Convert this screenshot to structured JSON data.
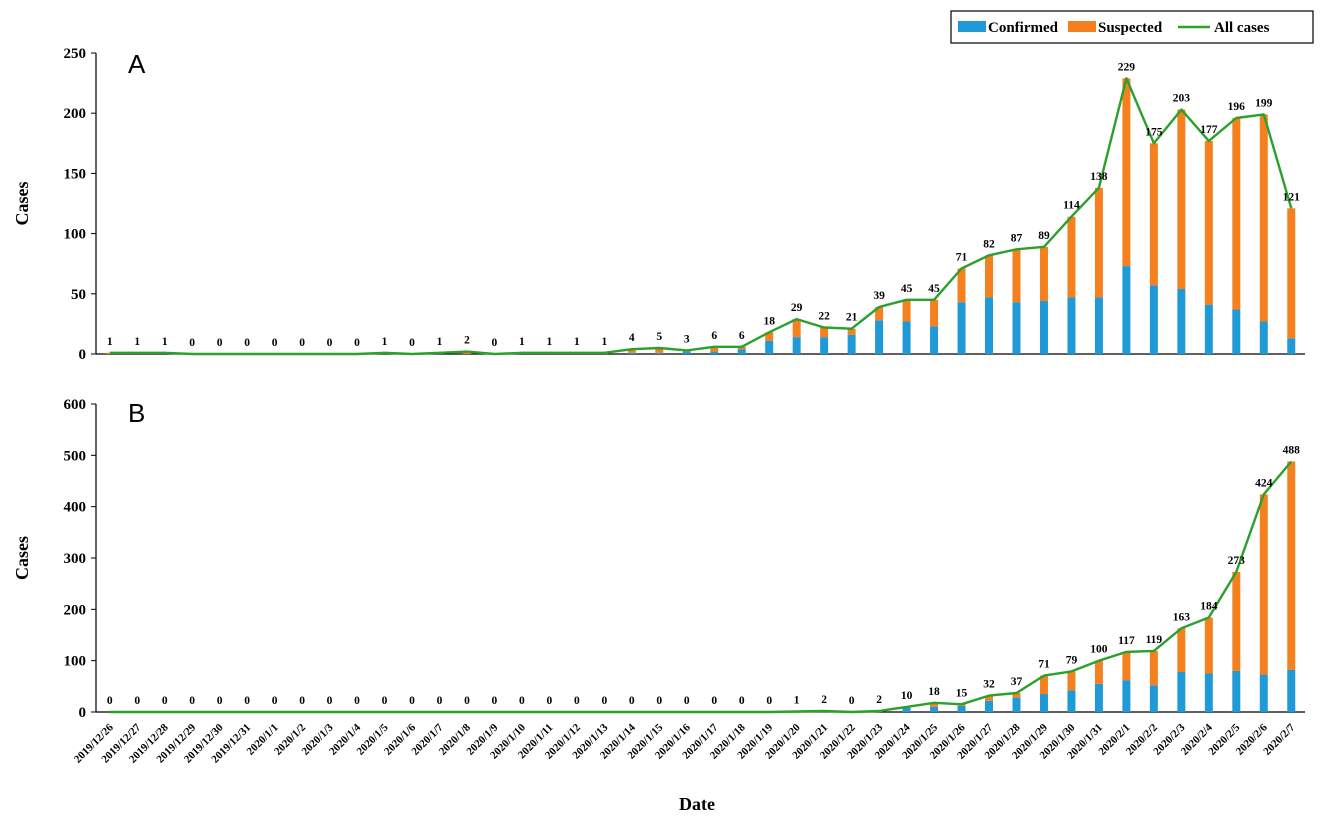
{
  "chart_data": {
    "type": "bar",
    "stacked": true,
    "xlabel": "Date",
    "categories": [
      "2019/12/26",
      "2019/12/27",
      "2019/12/28",
      "2019/12/29",
      "2019/12/30",
      "2019/12/31",
      "2020/1/1",
      "2020/1/2",
      "2020/1/3",
      "2020/1/4",
      "2020/1/5",
      "2020/1/6",
      "2020/1/7",
      "2020/1/8",
      "2020/1/9",
      "2020/1/10",
      "2020/1/11",
      "2020/1/12",
      "2020/1/13",
      "2020/1/14",
      "2020/1/15",
      "2020/1/16",
      "2020/1/17",
      "2020/1/18",
      "2020/1/19",
      "2020/1/20",
      "2020/1/21",
      "2020/1/22",
      "2020/1/23",
      "2020/1/24",
      "2020/1/25",
      "2020/1/26",
      "2020/1/27",
      "2020/1/28",
      "2020/1/29",
      "2020/1/30",
      "2020/1/31",
      "2020/2/1",
      "2020/2/2",
      "2020/2/3",
      "2020/2/4",
      "2020/2/5",
      "2020/2/6",
      "2020/2/7"
    ],
    "legend": {
      "position": "top-right",
      "items": [
        "Confirmed",
        "Suspected",
        "All cases"
      ]
    },
    "colors": {
      "Confirmed": "#1f9ad6",
      "Suspected": "#f5801f",
      "All cases": "#2ca02c"
    },
    "grid": false,
    "panels": [
      {
        "label": "A",
        "ylabel": "Cases",
        "ylim": [
          0,
          250
        ],
        "yticks": [
          0,
          50,
          100,
          150,
          200,
          250
        ],
        "series": [
          {
            "name": "Confirmed",
            "type": "bar",
            "values": [
              0,
              0,
              0,
              0,
              0,
              0,
              0,
              0,
              0,
              0,
              0,
              0,
              0,
              0,
              0,
              0,
              0,
              0,
              0,
              1,
              1,
              2,
              2,
              4,
              11,
              14,
              14,
              16,
              28,
              27,
              23,
              43,
              47,
              43,
              44,
              47,
              47,
              73,
              57,
              54,
              41,
              37,
              27,
              13
            ]
          },
          {
            "name": "Suspected",
            "type": "bar",
            "values": [
              1,
              1,
              1,
              0,
              0,
              0,
              0,
              0,
              0,
              0,
              1,
              0,
              1,
              2,
              0,
              1,
              1,
              1,
              1,
              3,
              4,
              1,
              4,
              2,
              7,
              15,
              8,
              5,
              11,
              18,
              22,
              28,
              35,
              44,
              45,
              67,
              91,
              156,
              118,
              149,
              136,
              159,
              172,
              108
            ]
          },
          {
            "name": "All cases",
            "type": "line",
            "values": [
              1,
              1,
              1,
              0,
              0,
              0,
              0,
              0,
              0,
              0,
              1,
              0,
              1,
              2,
              0,
              1,
              1,
              1,
              1,
              4,
              5,
              3,
              6,
              6,
              18,
              29,
              22,
              21,
              39,
              45,
              45,
              71,
              82,
              87,
              89,
              114,
              138,
              229,
              175,
              203,
              177,
              196,
              199,
              121
            ]
          }
        ]
      },
      {
        "label": "B",
        "ylabel": "Cases",
        "ylim": [
          0,
          600
        ],
        "yticks": [
          0,
          100,
          200,
          300,
          400,
          500,
          600
        ],
        "series": [
          {
            "name": "Confirmed",
            "type": "bar",
            "values": [
              0,
              0,
              0,
              0,
              0,
              0,
              0,
              0,
              0,
              0,
              0,
              0,
              0,
              0,
              0,
              0,
              0,
              0,
              0,
              0,
              0,
              0,
              0,
              0,
              0,
              0,
              1,
              0,
              1,
              8,
              10,
              12,
              22,
              28,
              35,
              42,
              55,
              62,
              52,
              78,
              75,
              80,
              73,
              82
            ]
          },
          {
            "name": "Suspected",
            "type": "bar",
            "values": [
              0,
              0,
              0,
              0,
              0,
              0,
              0,
              0,
              0,
              0,
              0,
              0,
              0,
              0,
              0,
              0,
              0,
              0,
              0,
              0,
              0,
              0,
              0,
              0,
              0,
              1,
              1,
              0,
              1,
              2,
              8,
              3,
              10,
              9,
              36,
              37,
              45,
              55,
              67,
              85,
              109,
              193,
              351,
              406
            ]
          },
          {
            "name": "All cases",
            "type": "line",
            "values": [
              0,
              0,
              0,
              0,
              0,
              0,
              0,
              0,
              0,
              0,
              0,
              0,
              0,
              0,
              0,
              0,
              0,
              0,
              0,
              0,
              0,
              0,
              0,
              0,
              0,
              1,
              2,
              0,
              2,
              10,
              18,
              15,
              32,
              37,
              71,
              79,
              100,
              117,
              119,
              163,
              184,
              273,
              424,
              488
            ]
          }
        ]
      }
    ]
  }
}
